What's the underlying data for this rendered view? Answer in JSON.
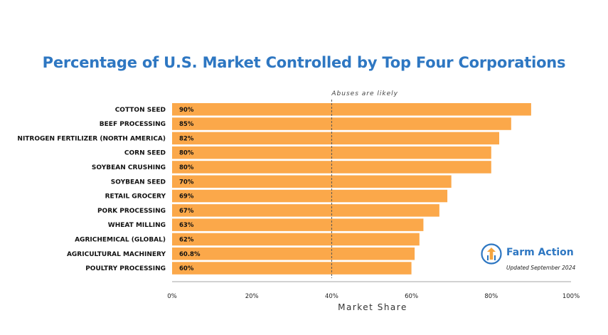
{
  "chart_data": {
    "type": "bar",
    "orientation": "horizontal",
    "title": "Percentage of U.S. Market Controlled by Top Four Corporations",
    "xlabel": "Market Share",
    "xlim": [
      0,
      100
    ],
    "x_ticks": [
      "0%",
      "20%",
      "40%",
      "60%",
      "80%",
      "100%"
    ],
    "categories": [
      "COTTON SEED",
      "BEEF PROCESSING",
      "NITROGEN FERTILIZER (NORTH AMERICA)",
      "CORN SEED",
      "SOYBEAN CRUSHING",
      "SOYBEAN SEED",
      "RETAIL GROCERY",
      "PORK PROCESSING",
      "WHEAT MILLING",
      "AGRICHEMICAL (GLOBAL)",
      "AGRICULTURAL MACHINERY",
      "POULTRY PROCESSING"
    ],
    "values": [
      90,
      85,
      82,
      80,
      80,
      70,
      69,
      67,
      63,
      62,
      60.8,
      60
    ],
    "value_labels": [
      "90%",
      "85%",
      "82%",
      "80%",
      "80%",
      "70%",
      "69%",
      "67%",
      "63%",
      "62%",
      "60.8%",
      "60%"
    ],
    "reference_line": {
      "value": 40,
      "label": "Abuses are likely"
    },
    "bar_color": "#fba84a",
    "grid": false
  },
  "brand": {
    "name": "Farm Action",
    "updated": "Updated September 2024",
    "color": "#2e77c2",
    "icon": "farm-action-logo-icon"
  }
}
